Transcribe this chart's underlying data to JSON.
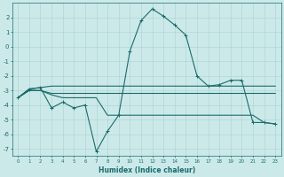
{
  "xlabel": "Humidex (Indice chaleur)",
  "background_color": "#cce9e9",
  "grid_color": "#aad0d0",
  "line_color": "#1a6b6b",
  "xlim": [
    -0.5,
    23.5
  ],
  "ylim": [
    -7.5,
    3.0
  ],
  "yticks": [
    -7,
    -6,
    -5,
    -4,
    -3,
    -2,
    -1,
    0,
    1,
    2
  ],
  "xticks": [
    0,
    1,
    2,
    3,
    4,
    5,
    6,
    7,
    8,
    9,
    10,
    11,
    12,
    13,
    14,
    15,
    16,
    17,
    18,
    19,
    20,
    21,
    22,
    23
  ],
  "main_x": [
    0,
    1,
    2,
    3,
    4,
    5,
    6,
    7,
    8,
    9,
    10,
    11,
    12,
    13,
    14,
    15,
    16,
    17,
    18,
    19,
    20,
    21,
    22,
    23
  ],
  "main_y": [
    -3.5,
    -2.9,
    -2.8,
    -4.2,
    -3.8,
    -4.2,
    -4.0,
    -7.2,
    -5.8,
    -4.7,
    -0.3,
    1.8,
    2.6,
    2.1,
    1.5,
    0.8,
    -2.0,
    -2.7,
    -2.6,
    -2.3,
    -2.3,
    -5.2,
    -5.2,
    -5.3
  ],
  "upper_x": [
    0,
    1,
    2,
    3,
    4,
    5,
    6,
    7,
    8,
    9,
    10,
    11,
    12,
    13,
    14,
    15,
    16,
    17,
    18,
    19,
    20,
    21,
    22,
    23
  ],
  "upper_y": [
    -3.5,
    -2.9,
    -2.8,
    -2.7,
    -2.7,
    -2.7,
    -2.7,
    -2.7,
    -2.7,
    -2.7,
    -2.7,
    -2.7,
    -2.7,
    -2.7,
    -2.7,
    -2.7,
    -2.7,
    -2.7,
    -2.7,
    -2.7,
    -2.7,
    -2.7,
    -2.7,
    -2.7
  ],
  "mid_x": [
    0,
    1,
    2,
    3,
    4,
    5,
    6,
    7,
    8,
    9,
    10,
    11,
    12,
    13,
    14,
    15,
    16,
    17,
    18,
    19,
    20,
    21,
    22,
    23
  ],
  "mid_y": [
    -3.5,
    -3.0,
    -3.0,
    -3.2,
    -3.2,
    -3.2,
    -3.2,
    -3.2,
    -3.2,
    -3.2,
    -3.2,
    -3.2,
    -3.2,
    -3.2,
    -3.2,
    -3.2,
    -3.2,
    -3.2,
    -3.2,
    -3.2,
    -3.2,
    -3.2,
    -3.2,
    -3.2
  ],
  "lower_x": [
    0,
    1,
    2,
    3,
    4,
    5,
    6,
    7,
    8,
    9,
    10,
    11,
    12,
    13,
    14,
    15,
    16,
    17,
    18,
    19,
    20,
    21,
    22,
    23
  ],
  "lower_y": [
    -3.5,
    -3.0,
    -3.0,
    -3.3,
    -3.5,
    -3.5,
    -3.5,
    -3.5,
    -4.7,
    -4.7,
    -4.7,
    -4.7,
    -4.7,
    -4.7,
    -4.7,
    -4.7,
    -4.7,
    -4.7,
    -4.7,
    -4.7,
    -4.7,
    -4.7,
    -5.2,
    -5.3
  ]
}
